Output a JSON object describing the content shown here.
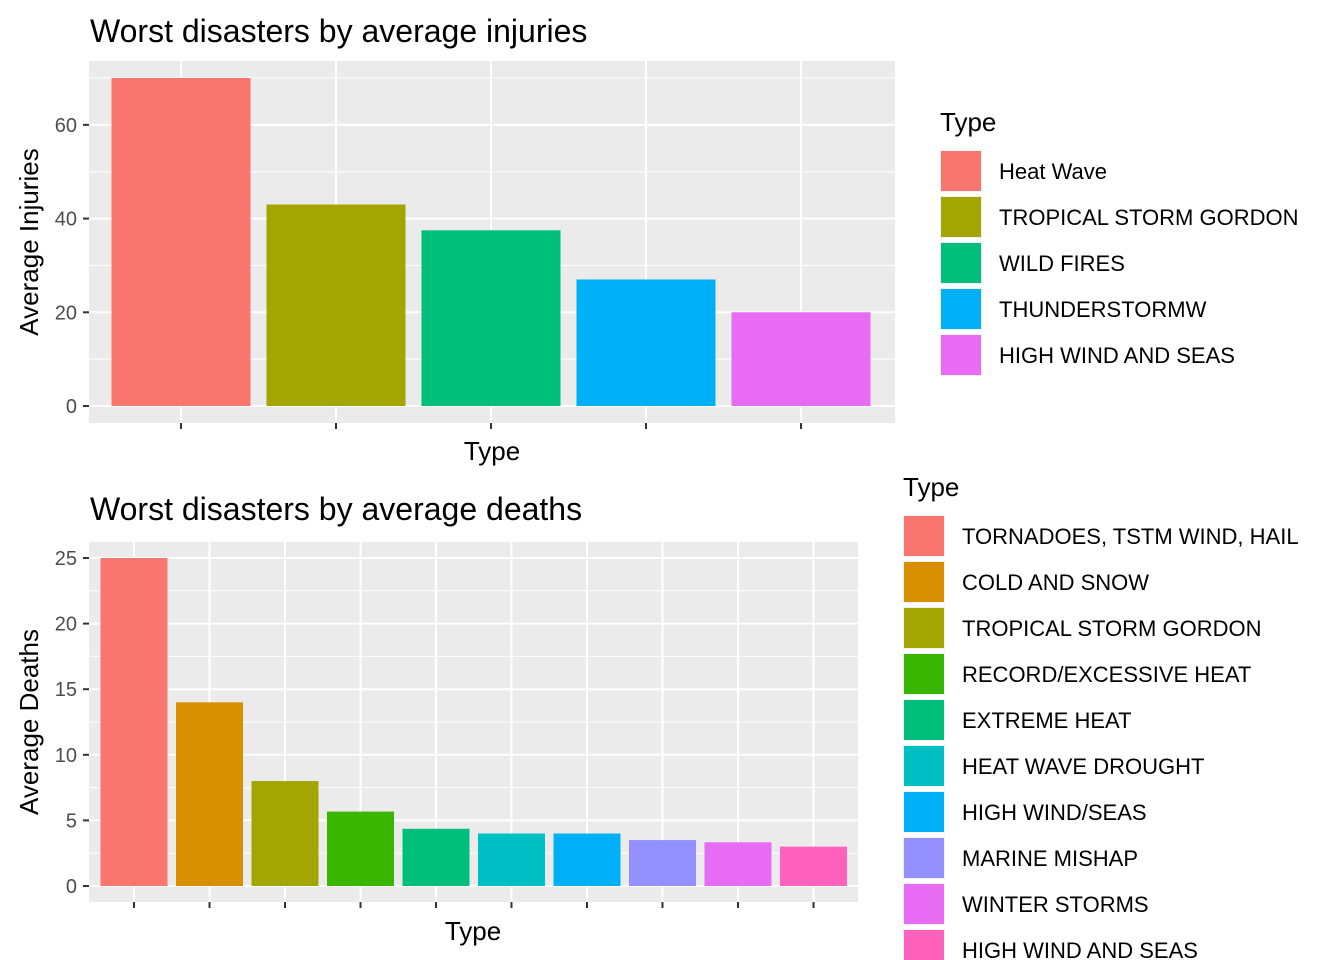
{
  "chart_data": [
    {
      "type": "bar",
      "title": "Worst disasters by average injuries",
      "xlabel": "Type",
      "ylabel": "Average Injuries",
      "ylim": [
        0,
        70
      ],
      "yticks": [
        0,
        20,
        40,
        60
      ],
      "grid": true,
      "legend": {
        "title": "Type",
        "placement": "right"
      },
      "categories": [
        "Heat Wave",
        "TROPICAL STORM GORDON",
        "WILD FIRES",
        "THUNDERSTORMW",
        "HIGH WIND AND SEAS"
      ],
      "values": [
        70,
        43,
        37.5,
        27,
        20
      ],
      "colors": [
        "#F8766D",
        "#A3A500",
        "#00BF7D",
        "#00B0F6",
        "#E76BF3"
      ]
    },
    {
      "type": "bar",
      "title": "Worst disasters by average deaths",
      "xlabel": "Type",
      "ylabel": "Average Deaths",
      "ylim": [
        0,
        25
      ],
      "yticks": [
        0,
        5,
        10,
        15,
        20,
        25
      ],
      "grid": true,
      "legend": {
        "title": "Type",
        "placement": "right"
      },
      "categories": [
        "TORNADOES, TSTM WIND, HAIL",
        "COLD AND SNOW",
        "TROPICAL STORM GORDON",
        "RECORD/EXCESSIVE HEAT",
        "EXTREME HEAT",
        "HEAT WAVE DROUGHT",
        "HIGH WIND/SEAS",
        "MARINE MISHAP",
        "WINTER STORMS",
        "HIGH WIND AND SEAS"
      ],
      "values": [
        25,
        14,
        8,
        5.67,
        4.36,
        4,
        4,
        3.5,
        3.33,
        3
      ],
      "colors": [
        "#F8766D",
        "#D89000",
        "#A3A500",
        "#39B600",
        "#00BF7D",
        "#00BFC4",
        "#00B0F6",
        "#9590FF",
        "#E76BF3",
        "#FF62BC"
      ]
    }
  ]
}
